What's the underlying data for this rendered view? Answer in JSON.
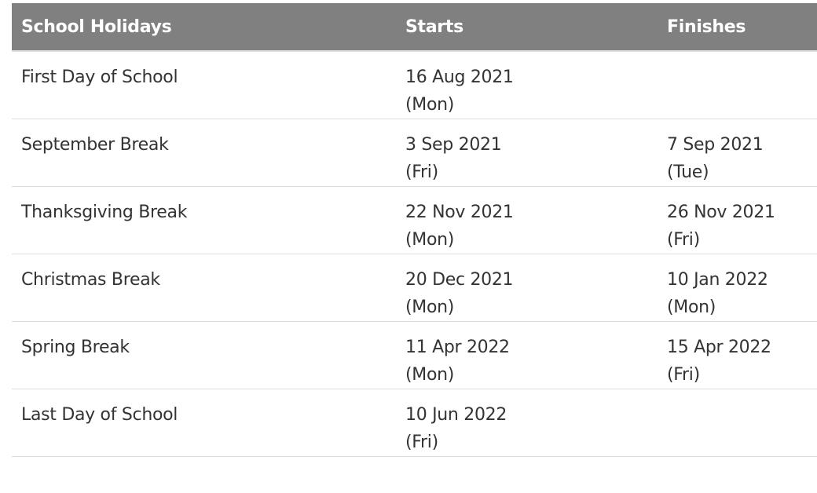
{
  "table": {
    "headers": [
      "School Holidays",
      "Starts",
      "Finishes"
    ],
    "rows": [
      {
        "name": "First Day of School",
        "start_date": "16 Aug 2021",
        "start_day": "(Mon)",
        "end_date": "",
        "end_day": ""
      },
      {
        "name": "September Break",
        "start_date": "3 Sep 2021",
        "start_day": "(Fri)",
        "end_date": "7 Sep 2021",
        "end_day": "(Tue)"
      },
      {
        "name": "Thanksgiving Break",
        "start_date": "22 Nov 2021",
        "start_day": "(Mon)",
        "end_date": "26 Nov 2021",
        "end_day": "(Fri)"
      },
      {
        "name": "Christmas Break",
        "start_date": "20 Dec 2021",
        "start_day": "(Mon)",
        "end_date": "10 Jan 2022",
        "end_day": "(Mon)"
      },
      {
        "name": "Spring Break",
        "start_date": "11 Apr 2022",
        "start_day": "(Mon)",
        "end_date": "15 Apr 2022",
        "end_day": "(Fri)"
      },
      {
        "name": "Last Day of School",
        "start_date": "10 Jun 2022",
        "start_day": "(Fri)",
        "end_date": "",
        "end_day": ""
      }
    ]
  },
  "colors": {
    "header_bg": "#808080",
    "header_text": "#ffffff",
    "body_text": "#333333",
    "row_border": "#dddddd"
  }
}
